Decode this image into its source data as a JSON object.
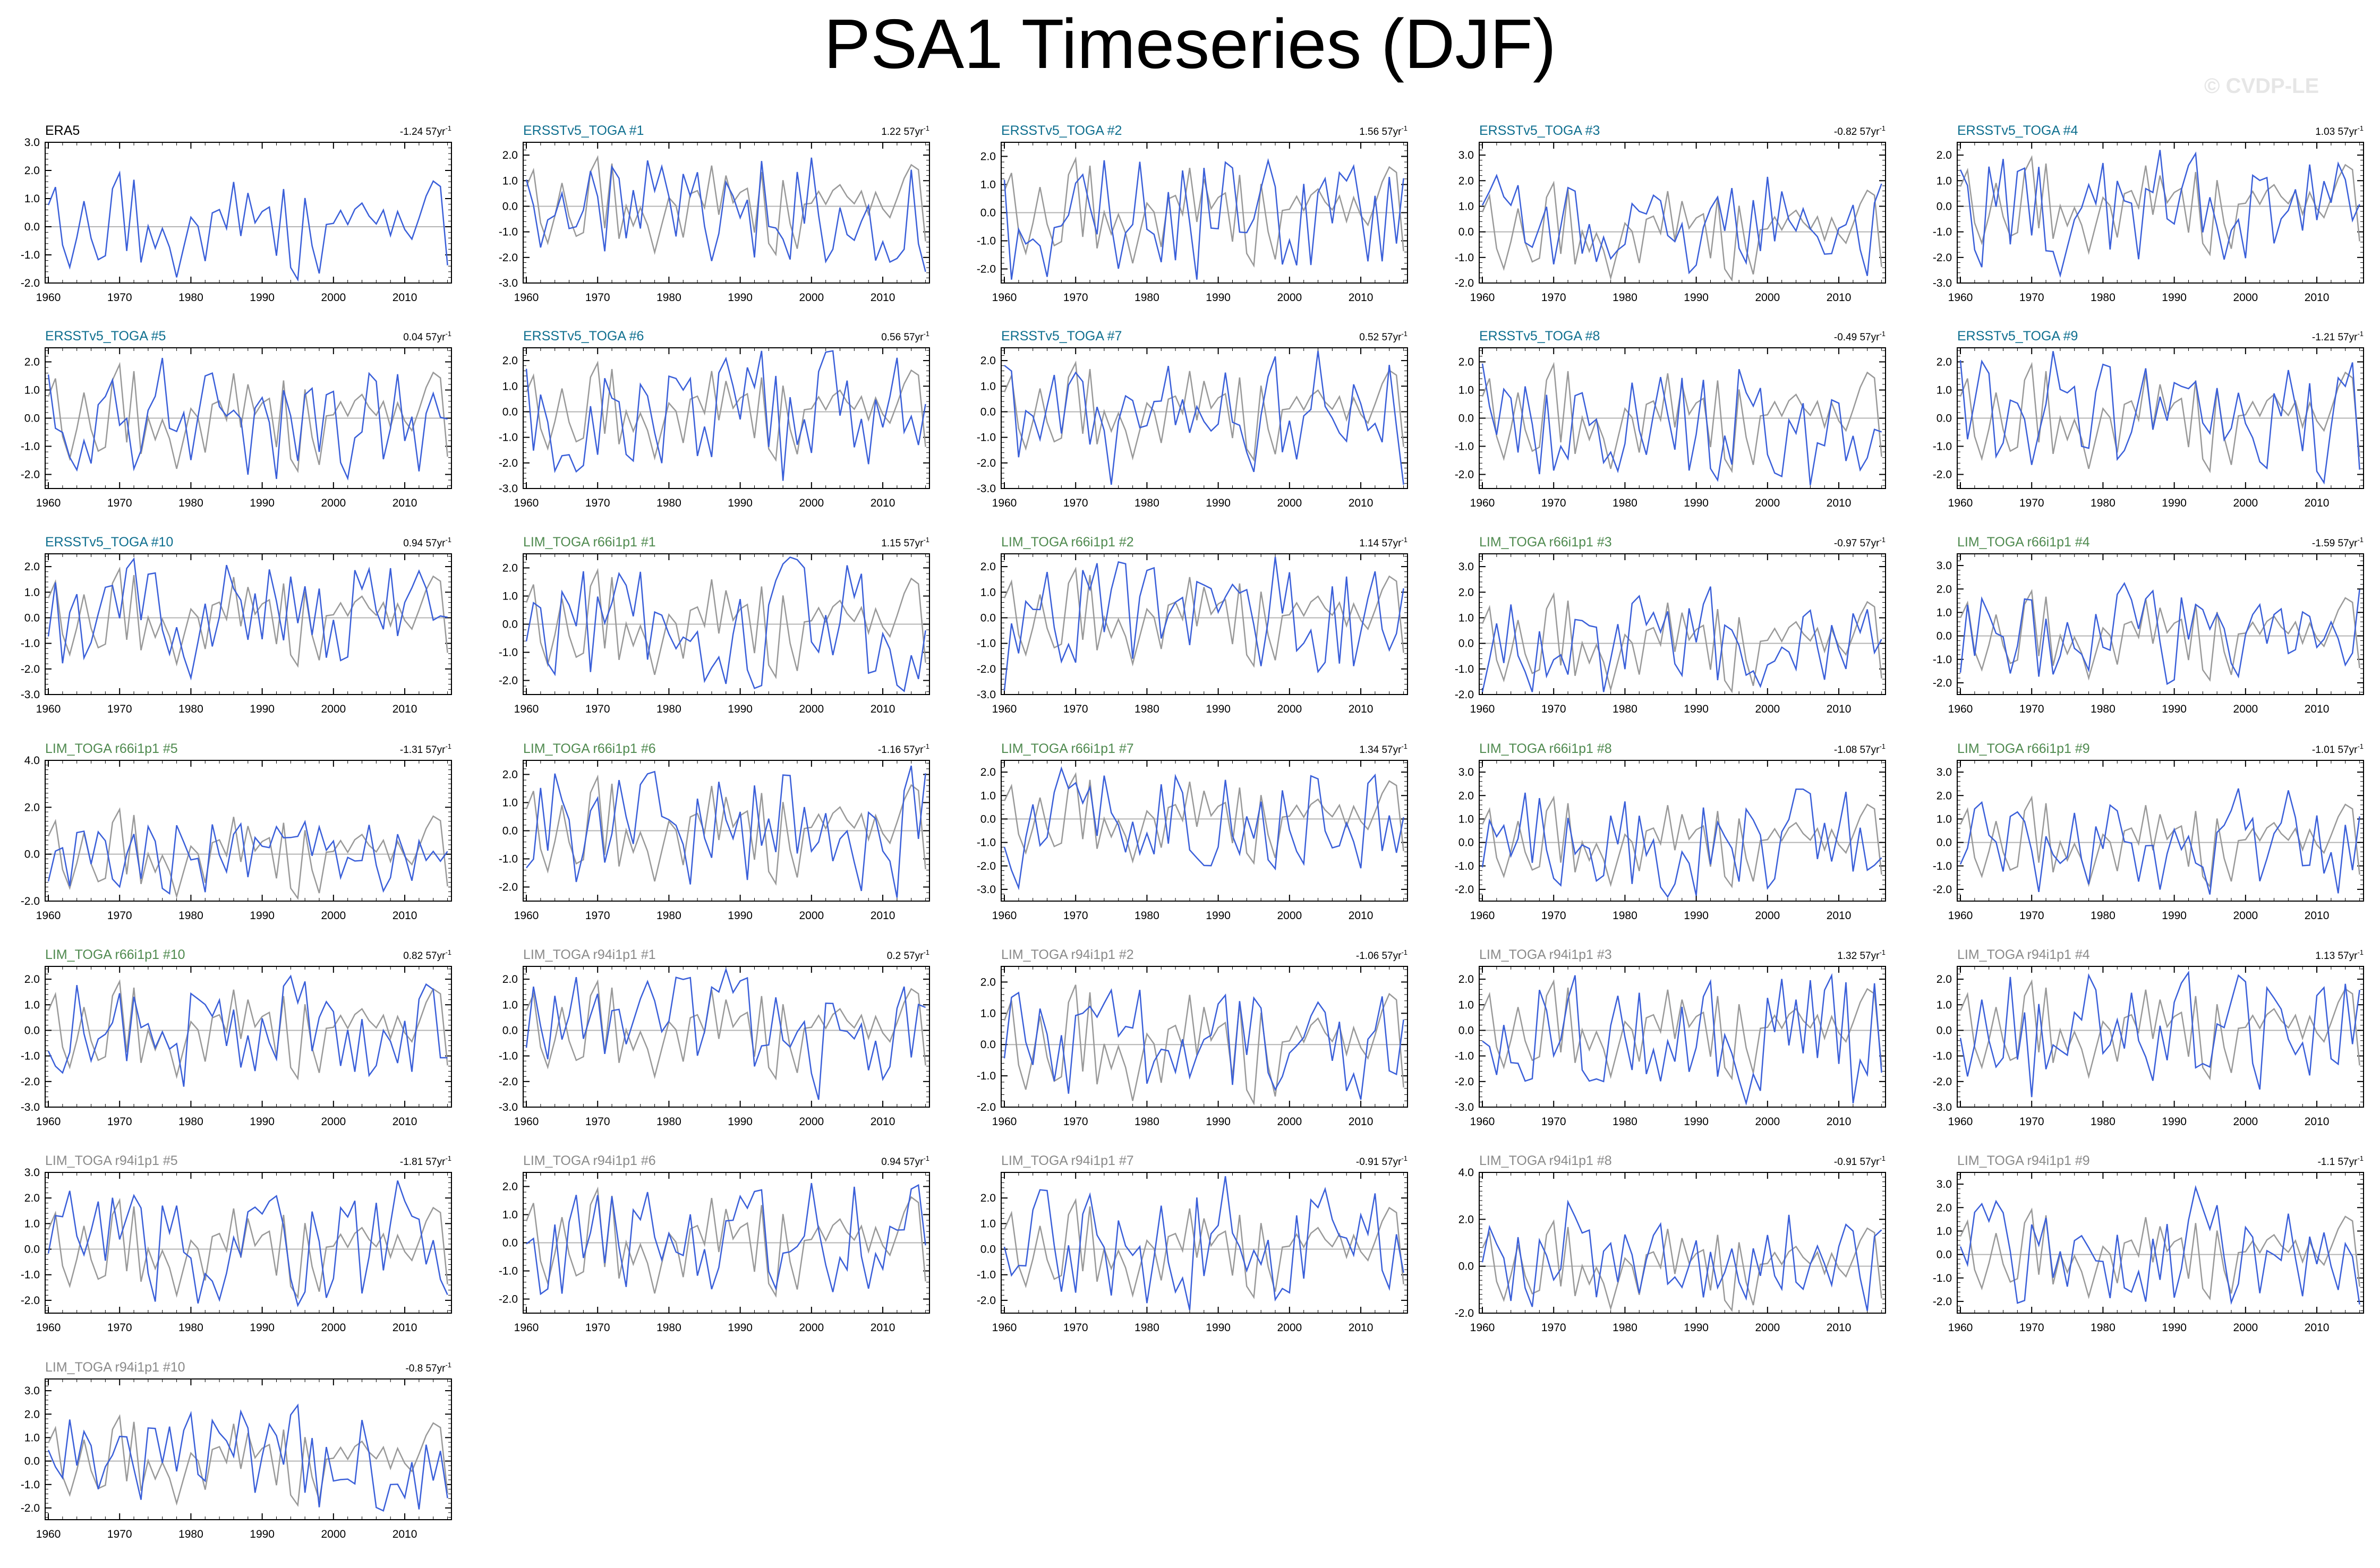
{
  "page_title": "PSA1 Timeseries (DJF)",
  "watermark": "© CVDP-LE",
  "colors": {
    "model_line": "#3a5fd9",
    "obs_line": "#999999",
    "zero_line": "#b3b3b3",
    "title_obs": "#000000",
    "title_ersst": "#0f6f8f",
    "title_lim66": "#4f8a4f",
    "title_lim94": "#8a8a8a"
  },
  "chart_data": [
    {
      "type": "line",
      "title": "ERA5",
      "trend": "-1.24 57yr",
      "x_range": [
        1960,
        2016
      ],
      "ylim": [
        -2.0,
        3.0
      ],
      "xticks": [
        "1960",
        "1970",
        "1980",
        "1990",
        "2000",
        "2010"
      ],
      "yticks": [
        "3.0",
        "2.0",
        "1.0",
        "0.0",
        "-1.0",
        "-2.0"
      ],
      "has_obs_overlay": false
    },
    {
      "type": "line",
      "title": "ERSSTv5_TOGA #1",
      "trend": "1.22 57yr",
      "x_range": [
        1960,
        2016
      ],
      "ylim": [
        -3.0,
        2.5
      ],
      "xticks": [
        "1960",
        "1970",
        "1980",
        "1990",
        "2000",
        "2010"
      ],
      "yticks": [
        "2.0",
        "1.0",
        "0.0",
        "-1.0",
        "-2.0",
        "-3.0"
      ],
      "has_obs_overlay": true
    },
    {
      "type": "line",
      "title": "ERSSTv5_TOGA #2",
      "trend": "1.56 57yr",
      "x_range": [
        1960,
        2016
      ],
      "ylim": [
        -2.5,
        2.5
      ],
      "xticks": [
        "1960",
        "1970",
        "1980",
        "1990",
        "2000",
        "2010"
      ],
      "yticks": [
        "2.0",
        "1.0",
        "0.0",
        "-1.0",
        "-2.0"
      ],
      "has_obs_overlay": true
    },
    {
      "type": "line",
      "title": "ERSSTv5_TOGA #3",
      "trend": "-0.82 57yr",
      "x_range": [
        1960,
        2016
      ],
      "ylim": [
        -2.0,
        3.5
      ],
      "xticks": [
        "1960",
        "1970",
        "1980",
        "1990",
        "2000",
        "2010"
      ],
      "yticks": [
        "3.0",
        "2.0",
        "1.0",
        "0.0",
        "-1.0",
        "-2.0"
      ],
      "has_obs_overlay": true
    },
    {
      "type": "line",
      "title": "ERSSTv5_TOGA #4",
      "trend": "1.03 57yr",
      "x_range": [
        1960,
        2016
      ],
      "ylim": [
        -3.0,
        2.5
      ],
      "xticks": [
        "1960",
        "1970",
        "1980",
        "1990",
        "2000",
        "2010"
      ],
      "yticks": [
        "2.0",
        "1.0",
        "0.0",
        "-1.0",
        "-2.0",
        "-3.0"
      ],
      "has_obs_overlay": true
    },
    {
      "type": "line",
      "title": "ERSSTv5_TOGA #5",
      "trend": "0.04 57yr",
      "x_range": [
        1960,
        2016
      ],
      "ylim": [
        -2.5,
        2.5
      ],
      "xticks": [
        "1960",
        "1970",
        "1980",
        "1990",
        "2000",
        "2010"
      ],
      "yticks": [
        "2.0",
        "1.0",
        "0.0",
        "-1.0",
        "-2.0"
      ],
      "has_obs_overlay": true
    },
    {
      "type": "line",
      "title": "ERSSTv5_TOGA #6",
      "trend": "0.56 57yr",
      "x_range": [
        1960,
        2016
      ],
      "ylim": [
        -3.0,
        2.5
      ],
      "xticks": [
        "1960",
        "1970",
        "1980",
        "1990",
        "2000",
        "2010"
      ],
      "yticks": [
        "2.0",
        "1.0",
        "0.0",
        "-1.0",
        "-2.0",
        "-3.0"
      ],
      "has_obs_overlay": true
    },
    {
      "type": "line",
      "title": "ERSSTv5_TOGA #7",
      "trend": "0.52 57yr",
      "x_range": [
        1960,
        2016
      ],
      "ylim": [
        -3.0,
        2.5
      ],
      "xticks": [
        "1960",
        "1970",
        "1980",
        "1990",
        "2000",
        "2010"
      ],
      "yticks": [
        "2.0",
        "1.0",
        "0.0",
        "-1.0",
        "-2.0",
        "-3.0"
      ],
      "has_obs_overlay": true
    },
    {
      "type": "line",
      "title": "ERSSTv5_TOGA #8",
      "trend": "-0.49 57yr",
      "x_range": [
        1960,
        2016
      ],
      "ylim": [
        -2.5,
        2.5
      ],
      "xticks": [
        "1960",
        "1970",
        "1980",
        "1990",
        "2000",
        "2010"
      ],
      "yticks": [
        "2.0",
        "1.0",
        "0.0",
        "-1.0",
        "-2.0"
      ],
      "has_obs_overlay": true
    },
    {
      "type": "line",
      "title": "ERSSTv5_TOGA #9",
      "trend": "-1.21 57yr",
      "x_range": [
        1960,
        2016
      ],
      "ylim": [
        -2.5,
        2.5
      ],
      "xticks": [
        "1960",
        "1970",
        "1980",
        "1990",
        "2000",
        "2010"
      ],
      "yticks": [
        "2.0",
        "1.0",
        "0.0",
        "-1.0",
        "-2.0"
      ],
      "has_obs_overlay": true
    },
    {
      "type": "line",
      "title": "ERSSTv5_TOGA #10",
      "trend": "0.94 57yr",
      "x_range": [
        1960,
        2016
      ],
      "ylim": [
        -3.0,
        2.5
      ],
      "xticks": [
        "1960",
        "1970",
        "1980",
        "1990",
        "2000",
        "2010"
      ],
      "yticks": [
        "2.0",
        "1.0",
        "0.0",
        "-1.0",
        "-2.0",
        "-3.0"
      ],
      "has_obs_overlay": true
    },
    {
      "type": "line",
      "title": "LIM_TOGA r66i1p1 #1",
      "trend": "1.15 57yr",
      "x_range": [
        1960,
        2016
      ],
      "ylim": [
        -2.5,
        2.5
      ],
      "xticks": [
        "1960",
        "1970",
        "1980",
        "1990",
        "2000",
        "2010"
      ],
      "yticks": [
        "2.0",
        "1.0",
        "0.0",
        "-1.0",
        "-2.0"
      ],
      "has_obs_overlay": true
    },
    {
      "type": "line",
      "title": "LIM_TOGA r66i1p1 #2",
      "trend": "1.14 57yr",
      "x_range": [
        1960,
        2016
      ],
      "ylim": [
        -3.0,
        2.5
      ],
      "xticks": [
        "1960",
        "1970",
        "1980",
        "1990",
        "2000",
        "2010"
      ],
      "yticks": [
        "2.0",
        "1.0",
        "0.0",
        "-1.0",
        "-2.0",
        "-3.0"
      ],
      "has_obs_overlay": true
    },
    {
      "type": "line",
      "title": "LIM_TOGA r66i1p1 #3",
      "trend": "-0.97 57yr",
      "x_range": [
        1960,
        2016
      ],
      "ylim": [
        -2.0,
        3.5
      ],
      "xticks": [
        "1960",
        "1970",
        "1980",
        "1990",
        "2000",
        "2010"
      ],
      "yticks": [
        "3.0",
        "2.0",
        "1.0",
        "0.0",
        "-1.0",
        "-2.0"
      ],
      "has_obs_overlay": true
    },
    {
      "type": "line",
      "title": "LIM_TOGA r66i1p1 #4",
      "trend": "-1.59 57yr",
      "x_range": [
        1960,
        2016
      ],
      "ylim": [
        -2.5,
        3.5
      ],
      "xticks": [
        "1960",
        "1970",
        "1980",
        "1990",
        "2000",
        "2010"
      ],
      "yticks": [
        "3.0",
        "2.0",
        "1.0",
        "0.0",
        "-1.0",
        "-2.0"
      ],
      "has_obs_overlay": true
    },
    {
      "type": "line",
      "title": "LIM_TOGA r66i1p1 #5",
      "trend": "-1.31 57yr",
      "x_range": [
        1960,
        2016
      ],
      "ylim": [
        -2.0,
        4.0
      ],
      "xticks": [
        "1960",
        "1970",
        "1980",
        "1990",
        "2000",
        "2010"
      ],
      "yticks": [
        "4.0",
        "2.0",
        "0.0",
        "-2.0"
      ],
      "has_obs_overlay": true
    },
    {
      "type": "line",
      "title": "LIM_TOGA r66i1p1 #6",
      "trend": "-1.16 57yr",
      "x_range": [
        1960,
        2016
      ],
      "ylim": [
        -2.5,
        2.5
      ],
      "xticks": [
        "1960",
        "1970",
        "1980",
        "1990",
        "2000",
        "2010"
      ],
      "yticks": [
        "2.0",
        "1.0",
        "0.0",
        "-1.0",
        "-2.0"
      ],
      "has_obs_overlay": true
    },
    {
      "type": "line",
      "title": "LIM_TOGA r66i1p1 #7",
      "trend": "1.34 57yr",
      "x_range": [
        1960,
        2016
      ],
      "ylim": [
        -3.5,
        2.5
      ],
      "xticks": [
        "1960",
        "1970",
        "1980",
        "1990",
        "2000",
        "2010"
      ],
      "yticks": [
        "2.0",
        "1.0",
        "0.0",
        "-1.0",
        "-2.0",
        "-3.0"
      ],
      "has_obs_overlay": true
    },
    {
      "type": "line",
      "title": "LIM_TOGA r66i1p1 #8",
      "trend": "-1.08 57yr",
      "x_range": [
        1960,
        2016
      ],
      "ylim": [
        -2.5,
        3.5
      ],
      "xticks": [
        "1960",
        "1970",
        "1980",
        "1990",
        "2000",
        "2010"
      ],
      "yticks": [
        "3.0",
        "2.0",
        "1.0",
        "0.0",
        "-1.0",
        "-2.0"
      ],
      "has_obs_overlay": true
    },
    {
      "type": "line",
      "title": "LIM_TOGA r66i1p1 #9",
      "trend": "-1.01 57yr",
      "x_range": [
        1960,
        2016
      ],
      "ylim": [
        -2.5,
        3.5
      ],
      "xticks": [
        "1960",
        "1970",
        "1980",
        "1990",
        "2000",
        "2010"
      ],
      "yticks": [
        "3.0",
        "2.0",
        "1.0",
        "0.0",
        "-1.0",
        "-2.0"
      ],
      "has_obs_overlay": true
    },
    {
      "type": "line",
      "title": "LIM_TOGA r66i1p1 #10",
      "trend": "0.82 57yr",
      "x_range": [
        1960,
        2016
      ],
      "ylim": [
        -3.0,
        2.5
      ],
      "xticks": [
        "1960",
        "1970",
        "1980",
        "1990",
        "2000",
        "2010"
      ],
      "yticks": [
        "2.0",
        "1.0",
        "0.0",
        "-1.0",
        "-2.0",
        "-3.0"
      ],
      "has_obs_overlay": true
    },
    {
      "type": "line",
      "title": "LIM_TOGA r94i1p1 #1",
      "trend": "0.2 57yr",
      "x_range": [
        1960,
        2016
      ],
      "ylim": [
        -3.0,
        2.5
      ],
      "xticks": [
        "1960",
        "1970",
        "1980",
        "1990",
        "2000",
        "2010"
      ],
      "yticks": [
        "2.0",
        "1.0",
        "0.0",
        "-1.0",
        "-2.0",
        "-3.0"
      ],
      "has_obs_overlay": true
    },
    {
      "type": "line",
      "title": "LIM_TOGA r94i1p1 #2",
      "trend": "-1.06 57yr",
      "x_range": [
        1960,
        2016
      ],
      "ylim": [
        -2.0,
        2.5
      ],
      "xticks": [
        "1960",
        "1970",
        "1980",
        "1990",
        "2000",
        "2010"
      ],
      "yticks": [
        "2.0",
        "1.0",
        "0.0",
        "-1.0",
        "-2.0"
      ],
      "has_obs_overlay": true
    },
    {
      "type": "line",
      "title": "LIM_TOGA r94i1p1 #3",
      "trend": "1.32 57yr",
      "x_range": [
        1960,
        2016
      ],
      "ylim": [
        -3.0,
        2.5
      ],
      "xticks": [
        "1960",
        "1970",
        "1980",
        "1990",
        "2000",
        "2010"
      ],
      "yticks": [
        "2.0",
        "1.0",
        "0.0",
        "-1.0",
        "-2.0",
        "-3.0"
      ],
      "has_obs_overlay": true
    },
    {
      "type": "line",
      "title": "LIM_TOGA r94i1p1 #4",
      "trend": "1.13 57yr",
      "x_range": [
        1960,
        2016
      ],
      "ylim": [
        -3.0,
        2.5
      ],
      "xticks": [
        "1960",
        "1970",
        "1980",
        "1990",
        "2000",
        "2010"
      ],
      "yticks": [
        "2.0",
        "1.0",
        "0.0",
        "-1.0",
        "-2.0",
        "-3.0"
      ],
      "has_obs_overlay": true
    },
    {
      "type": "line",
      "title": "LIM_TOGA r94i1p1 #5",
      "trend": "-1.81 57yr",
      "x_range": [
        1960,
        2016
      ],
      "ylim": [
        -2.5,
        3.0
      ],
      "xticks": [
        "1960",
        "1970",
        "1980",
        "1990",
        "2000",
        "2010"
      ],
      "yticks": [
        "3.0",
        "2.0",
        "1.0",
        "0.0",
        "-1.0",
        "-2.0"
      ],
      "has_obs_overlay": true
    },
    {
      "type": "line",
      "title": "LIM_TOGA r94i1p1 #6",
      "trend": "0.94 57yr",
      "x_range": [
        1960,
        2016
      ],
      "ylim": [
        -2.5,
        2.5
      ],
      "xticks": [
        "1960",
        "1970",
        "1980",
        "1990",
        "2000",
        "2010"
      ],
      "yticks": [
        "2.0",
        "1.0",
        "0.0",
        "-1.0",
        "-2.0"
      ],
      "has_obs_overlay": true
    },
    {
      "type": "line",
      "title": "LIM_TOGA r94i1p1 #7",
      "trend": "-0.91 57yr",
      "x_range": [
        1960,
        2016
      ],
      "ylim": [
        -2.5,
        3.0
      ],
      "xticks": [
        "1960",
        "1970",
        "1980",
        "1990",
        "2000",
        "2010"
      ],
      "yticks": [
        "2.0",
        "1.0",
        "0.0",
        "-1.0",
        "-2.0"
      ],
      "has_obs_overlay": true
    },
    {
      "type": "line",
      "title": "LIM_TOGA r94i1p1 #8",
      "trend": "-0.91 57yr",
      "x_range": [
        1960,
        2016
      ],
      "ylim": [
        -2.0,
        4.0
      ],
      "xticks": [
        "1960",
        "1970",
        "1980",
        "1990",
        "2000",
        "2010"
      ],
      "yticks": [
        "4.0",
        "2.0",
        "0.0",
        "-2.0"
      ],
      "has_obs_overlay": true
    },
    {
      "type": "line",
      "title": "LIM_TOGA r94i1p1 #9",
      "trend": "-1.1 57yr",
      "x_range": [
        1960,
        2016
      ],
      "ylim": [
        -2.5,
        3.5
      ],
      "xticks": [
        "1960",
        "1970",
        "1980",
        "1990",
        "2000",
        "2010"
      ],
      "yticks": [
        "3.0",
        "2.0",
        "1.0",
        "0.0",
        "-1.0",
        "-2.0"
      ],
      "has_obs_overlay": true
    },
    {
      "type": "line",
      "title": "LIM_TOGA r94i1p1 #10",
      "trend": "-0.8 57yr",
      "x_range": [
        1960,
        2016
      ],
      "ylim": [
        -2.5,
        3.5
      ],
      "xticks": [
        "1960",
        "1970",
        "1980",
        "1990",
        "2000",
        "2010"
      ],
      "yticks": [
        "3.0",
        "2.0",
        "1.0",
        "0.0",
        "-1.0",
        "-2.0"
      ],
      "has_obs_overlay": true
    }
  ]
}
